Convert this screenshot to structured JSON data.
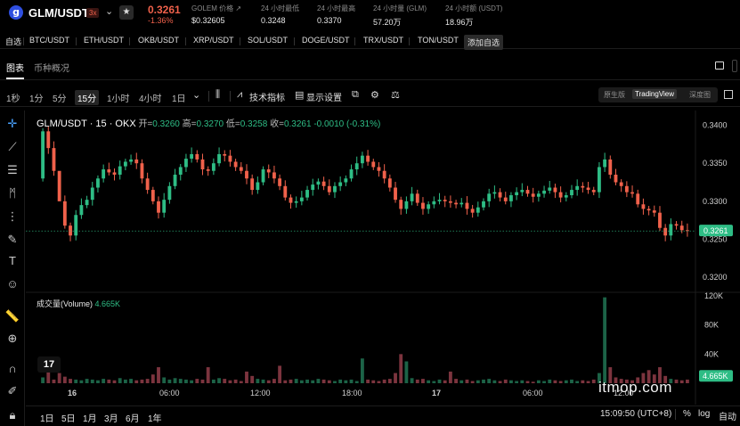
{
  "ticker": {
    "logo_letter": "g",
    "pair": "GLM/USDT",
    "leverage": "3x",
    "last_price": "0.3261",
    "change_pct": "-1.36%",
    "stats": [
      {
        "label": "GOLEM 价格 ↗",
        "value": "$0.32605"
      },
      {
        "label": "24 小时最低",
        "value": "0.3248"
      },
      {
        "label": "24 小时最高",
        "value": "0.3370"
      },
      {
        "label": "24 小时量 (GLM)",
        "value": "57.20万"
      },
      {
        "label": "24 小时额 (USDT)",
        "value": "18.96万"
      }
    ],
    "colors": {
      "down": "#f0614b",
      "up": "#2ebd85"
    }
  },
  "favorites": {
    "label": "自选",
    "items": [
      "BTC/USDT",
      "ETH/USDT",
      "OKB/USDT",
      "XRP/USDT",
      "SOL/USDT",
      "DOGE/USDT",
      "TRX/USDT",
      "TON/USDT"
    ],
    "add_label": "添加自选"
  },
  "tabs": {
    "chart": "图表",
    "overview": "币种概况"
  },
  "toolbar": {
    "intervals": [
      "1秒",
      "1分",
      "5分",
      "15分",
      "1小时",
      "4小时",
      "1日"
    ],
    "active_interval": "15分",
    "indicators": "技术指标",
    "display_settings": "显示设置",
    "views": [
      "原生版",
      "TradingView",
      "深度图"
    ],
    "active_view": "TradingView"
  },
  "legend": {
    "pair_label": "GLM/USDT · 15 · OKX",
    "open_k": "开=",
    "open_v": "0.3260",
    "high_k": "高=",
    "high_v": "0.3270",
    "low_k": "低=",
    "low_v": "0.3258",
    "close_k": "收=",
    "close_v": "0.3261",
    "change_v": "-0.0010 (-0.31%)",
    "volume_label": "成交量(Volume)",
    "volume_value": "4.665K"
  },
  "watermark": "itmop.com",
  "tv_logo": "17",
  "bottom": {
    "ranges": [
      "1日",
      "5日",
      "1月",
      "3月",
      "6月",
      "1年"
    ],
    "clock": "15:09:50 (UTC+8)",
    "percent": "%",
    "log": "log",
    "auto": "自动"
  },
  "chart_data": {
    "type": "candlestick",
    "price_axis": {
      "ticks": [
        "0.3400",
        "0.3350",
        "0.3300",
        "0.3250",
        "0.3200"
      ],
      "range": [
        0.3185,
        0.341
      ]
    },
    "volume_axis": {
      "ticks": [
        "120K",
        "80K",
        "40K"
      ],
      "range": [
        0,
        120000
      ]
    },
    "time_ticks": [
      "16",
      "06:00",
      "12:00",
      "18:00",
      "17",
      "06:00",
      "12:00"
    ],
    "last_price_label": "0.3261",
    "last_volume_label": "4.665K",
    "closes": [
      0.3392,
      0.337,
      0.334,
      0.33,
      0.3268,
      0.3255,
      0.3282,
      0.3295,
      0.3302,
      0.3318,
      0.333,
      0.3342,
      0.3338,
      0.3335,
      0.3346,
      0.3352,
      0.3355,
      0.335,
      0.333,
      0.3315,
      0.33,
      0.3285,
      0.3302,
      0.332,
      0.3335,
      0.3345,
      0.3356,
      0.3362,
      0.3355,
      0.3342,
      0.334,
      0.335,
      0.3362,
      0.336,
      0.3352,
      0.3345,
      0.334,
      0.333,
      0.3315,
      0.3325,
      0.3342,
      0.3338,
      0.333,
      0.332,
      0.3305,
      0.3298,
      0.33,
      0.3305,
      0.3315,
      0.3322,
      0.3326,
      0.332,
      0.3312,
      0.332,
      0.3325,
      0.333,
      0.3342,
      0.335,
      0.336,
      0.3352,
      0.3345,
      0.334,
      0.333,
      0.3318,
      0.3302,
      0.329,
      0.33,
      0.331,
      0.3298,
      0.329,
      0.3296,
      0.33,
      0.3302,
      0.33,
      0.3298,
      0.3296,
      0.3298,
      0.329,
      0.3285,
      0.3292,
      0.33,
      0.331,
      0.3312,
      0.3305,
      0.33,
      0.3308,
      0.3312,
      0.3315,
      0.331,
      0.3306,
      0.331,
      0.3314,
      0.3318,
      0.3312,
      0.3305,
      0.3308,
      0.3315,
      0.332,
      0.3318,
      0.3315,
      0.3312,
      0.3345,
      0.3355,
      0.3335,
      0.3325,
      0.332,
      0.3312,
      0.331,
      0.3296,
      0.329,
      0.3288,
      0.3285,
      0.3265,
      0.3255,
      0.327,
      0.3268,
      0.3262,
      0.3261
    ],
    "volumes": [
      8,
      22,
      5,
      14,
      9,
      6,
      5,
      4,
      6,
      5,
      4,
      6,
      5,
      4,
      7,
      5,
      6,
      4,
      5,
      6,
      12,
      22,
      8,
      5,
      7,
      6,
      5,
      4,
      6,
      5,
      22,
      5,
      7,
      6,
      4,
      5,
      3,
      16,
      10,
      6,
      5,
      4,
      6,
      24,
      4,
      5,
      6,
      4,
      5,
      4,
      6,
      5,
      4,
      3,
      5,
      4,
      5,
      3,
      34,
      5,
      4,
      3,
      5,
      6,
      14,
      40,
      30,
      7,
      5,
      6,
      4,
      3,
      5,
      4,
      16,
      6,
      4,
      5,
      3,
      4,
      5,
      6,
      4,
      3,
      5,
      4,
      3,
      4,
      3,
      2,
      4,
      3,
      5,
      4,
      3,
      4,
      5,
      3,
      4,
      3,
      5,
      14,
      118,
      22,
      8,
      6,
      5,
      4,
      8,
      14,
      18,
      12,
      22,
      10,
      6,
      5,
      4,
      5
    ]
  }
}
